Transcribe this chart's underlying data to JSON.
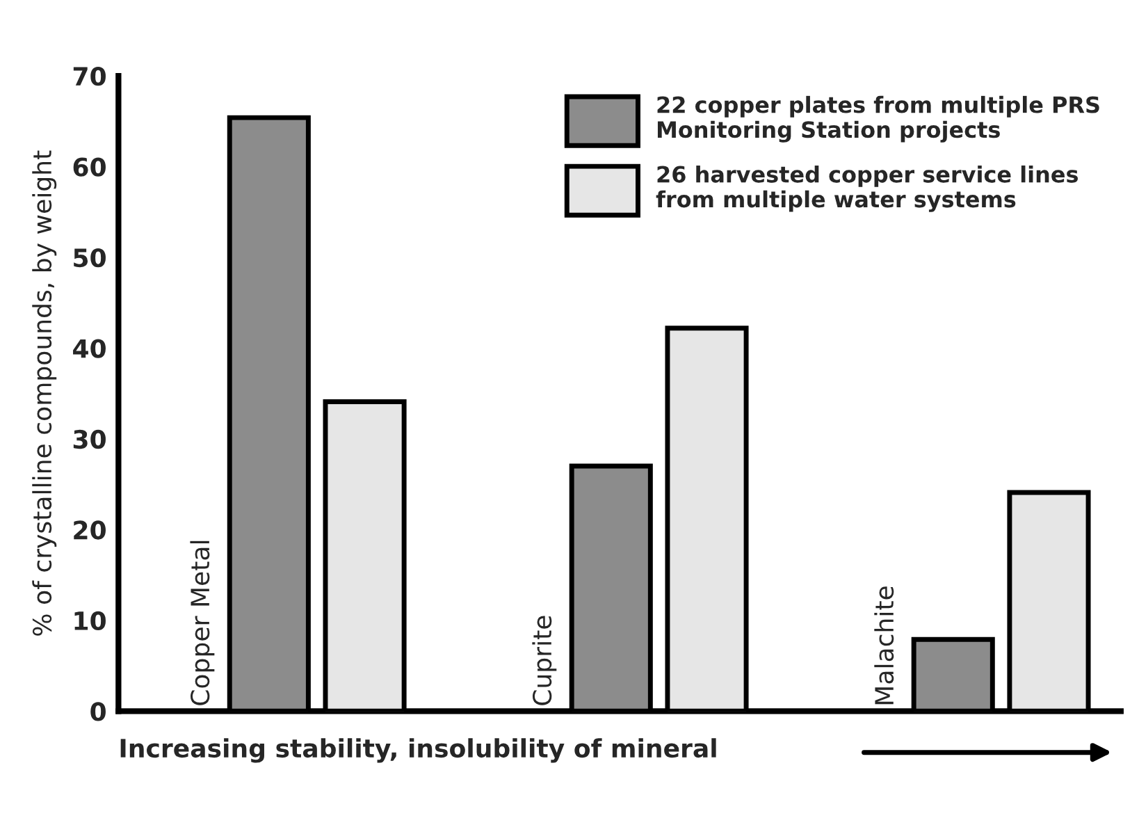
{
  "chart_data": {
    "type": "bar",
    "categories": [
      "Copper Metal",
      "Cuprite",
      "Malachite"
    ],
    "series": [
      {
        "name": "22 copper plates from multiple PRS\nMonitoring Station projects",
        "color": "#8c8c8c",
        "values": [
          65.4,
          27.0,
          7.9
        ]
      },
      {
        "name": "26 harvested copper service lines\nfrom multiple water systems",
        "color": "#e6e6e6",
        "values": [
          34.1,
          42.2,
          24.1
        ]
      }
    ],
    "xlabel": "Increasing stability, insolubility of mineral",
    "ylabel": "% of crystalline compounds, by weight",
    "ylim": [
      0,
      70
    ],
    "yticks": [
      0,
      10,
      20,
      30,
      40,
      50,
      60,
      70
    ],
    "tick_labels": "y",
    "grid": false,
    "legend": "top right"
  }
}
